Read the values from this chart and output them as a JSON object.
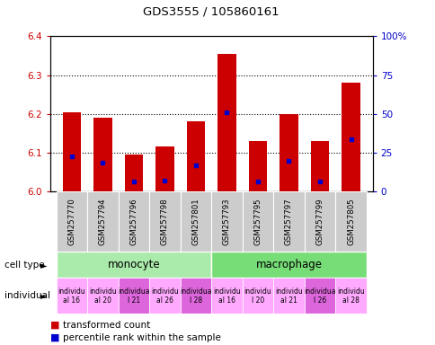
{
  "title": "GDS3555 / 105860161",
  "samples": [
    "GSM257770",
    "GSM257794",
    "GSM257796",
    "GSM257798",
    "GSM257801",
    "GSM257793",
    "GSM257795",
    "GSM257797",
    "GSM257799",
    "GSM257805"
  ],
  "bar_values": [
    6.205,
    6.19,
    6.095,
    6.115,
    6.18,
    6.355,
    6.13,
    6.2,
    6.13,
    6.28
  ],
  "bar_base": 6.0,
  "percentile_values": [
    6.09,
    6.075,
    6.025,
    6.027,
    6.067,
    6.205,
    6.025,
    6.08,
    6.025,
    6.135
  ],
  "ylim": [
    6.0,
    6.4
  ],
  "yticks_left": [
    6.0,
    6.1,
    6.2,
    6.3,
    6.4
  ],
  "yticks_right": [
    0,
    25,
    50,
    75,
    100
  ],
  "bar_color": "#cc0000",
  "percentile_color": "#0000cc",
  "cell_type_data": [
    {
      "label": "monocyte",
      "start": 0,
      "end": 5,
      "color": "#aaeaaa"
    },
    {
      "label": "macrophage",
      "start": 5,
      "end": 10,
      "color": "#77dd77"
    }
  ],
  "individual_colors": [
    "#ffaaff",
    "#ffaaff",
    "#dd66dd",
    "#ffaaff",
    "#dd66dd",
    "#ffaaff",
    "#ffaaff",
    "#ffaaff",
    "#dd66dd",
    "#ffaaff"
  ],
  "individual_labels": [
    "individu\nal 16",
    "individu\nal 20",
    "individua\nl 21",
    "individu\nal 26",
    "individua\nl 28",
    "individu\nal 16",
    "individu\nl 20",
    "individu\nal 21",
    "individua\nl 26",
    "individu\nal 28"
  ],
  "bg_color": "#ffffff",
  "plot_bg_color": "#ffffff",
  "tick_label_bg": "#cccccc",
  "left_label_color": "#cc0000",
  "right_label_color": "#0000cc",
  "bar_width": 0.6
}
